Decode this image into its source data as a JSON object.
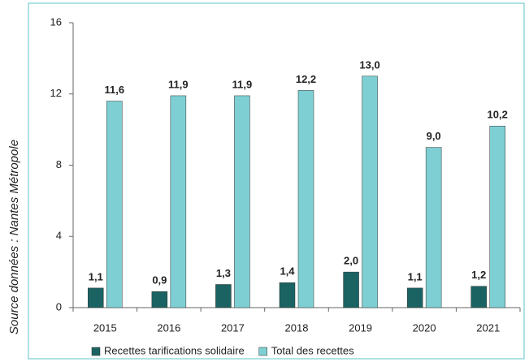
{
  "chart_data": {
    "type": "bar",
    "annotation": "Source données : Nantes Métropole",
    "categories": [
      "2015",
      "2016",
      "2017",
      "2018",
      "2019",
      "2020",
      "2021"
    ],
    "series": [
      {
        "name": "Recettes tarifications solidaire",
        "color": "#1b6363",
        "values": [
          1.1,
          0.9,
          1.3,
          1.4,
          2.0,
          1.1,
          1.2
        ],
        "value_labels": [
          "1,1",
          "0,9",
          "1,3",
          "1,4",
          "2,0",
          "1,1",
          "1,2"
        ]
      },
      {
        "name": "Total des recettes",
        "color": "#7ecfd3",
        "values": [
          11.6,
          11.9,
          11.9,
          12.2,
          13.0,
          9.0,
          10.2
        ],
        "value_labels": [
          "11,6",
          "11,9",
          "11,9",
          "12,2",
          "13,0",
          "9,0",
          "10,2"
        ]
      }
    ],
    "ylim": [
      0,
      16
    ],
    "yticks": [
      0,
      4,
      8,
      12,
      16
    ],
    "legend": "bottom"
  }
}
